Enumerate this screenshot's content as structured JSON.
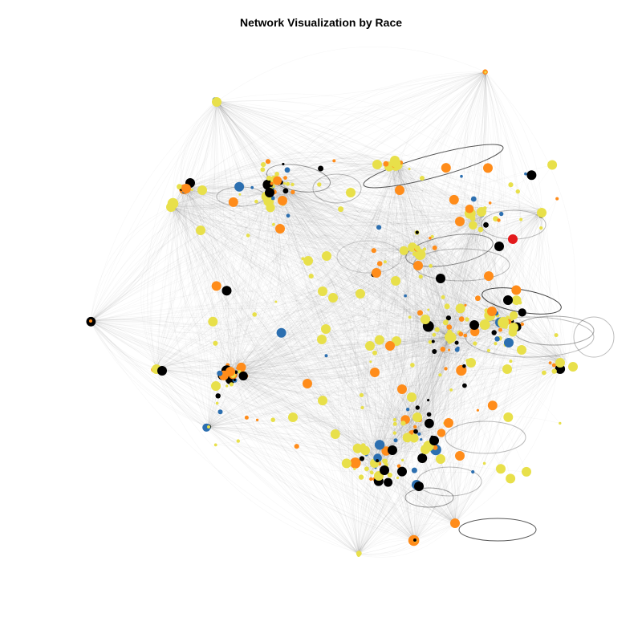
{
  "title": "Network Visualization by Race",
  "colors": {
    "yellow": "#e8e04a",
    "orange": "#ff8c1a",
    "black": "#000000",
    "red": "#e31a1c",
    "blue": "#2c6fb0",
    "edge": "#555555"
  }
}
